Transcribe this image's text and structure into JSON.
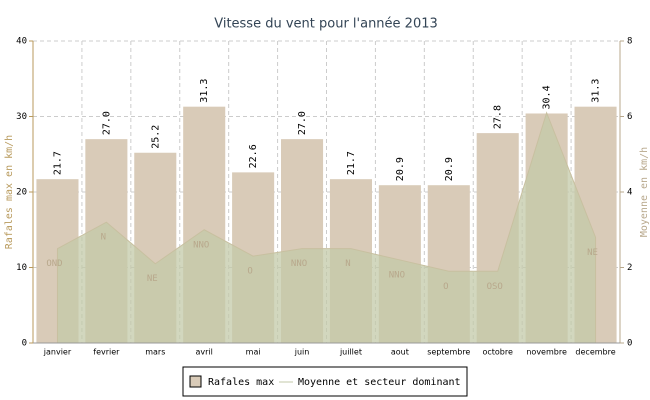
{
  "chart_data": {
    "type": "bar",
    "title": "Vitesse du vent pour l'année 2013",
    "y_label": "Rafales max en km/h",
    "y2_label": "Moyenne en km/h",
    "categories": [
      "janvier",
      "fevrier",
      "mars",
      "avril",
      "mai",
      "juin",
      "juillet",
      "aout",
      "septembre",
      "octobre",
      "novembre",
      "decembre"
    ],
    "series": [
      {
        "name": "Rafales max",
        "color": "#d9cbb8",
        "values": [
          21.7,
          27,
          25.2,
          31.3,
          22.6,
          27,
          21.7,
          20.9,
          20.9,
          27.8,
          30.4,
          31.3
        ],
        "value_labels": [
          "21.7",
          "27.0",
          "25.2",
          "31.3",
          "22.6",
          "27.0",
          "21.7",
          "20.9",
          "20.9",
          "27.8",
          "30.4",
          "31.3"
        ]
      },
      {
        "name": "Moyenne et secteur dominant",
        "color": "#c3caa8",
        "axis": "y2",
        "values": [
          2.5,
          3.2,
          2.1,
          3.0,
          2.3,
          2.5,
          2.5,
          2.2,
          1.9,
          1.9,
          6.1,
          2.8
        ],
        "point_labels": [
          "OND",
          "N",
          "NE",
          "NNO",
          "O",
          "NNO",
          "N",
          "NNO",
          "O",
          "OSO",
          null,
          "NE"
        ]
      }
    ],
    "ylim": [
      0,
      40
    ],
    "yticks": [
      0,
      10,
      20,
      30,
      40
    ],
    "y2lim": [
      0,
      8
    ],
    "y2ticks": [
      0,
      2,
      4,
      6,
      8
    ],
    "grid": true
  }
}
